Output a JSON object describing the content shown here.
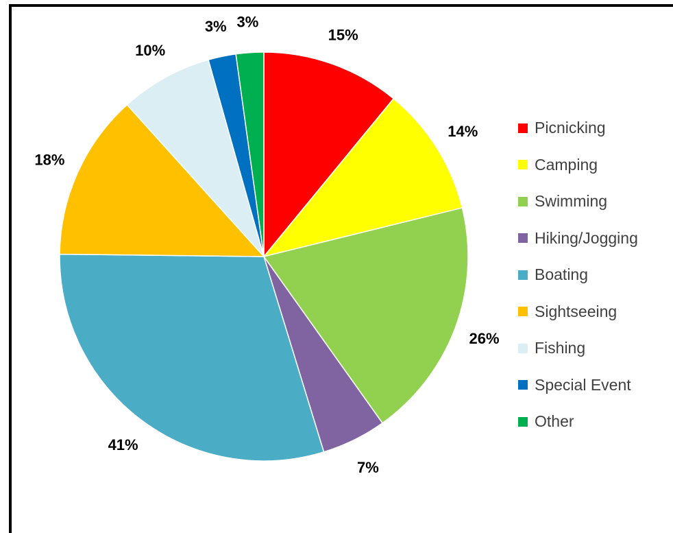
{
  "chart_data": {
    "type": "pie",
    "title": "",
    "legend_position": "right",
    "slices": [
      {
        "name": "Picnicking",
        "value": 15,
        "label": "15%",
        "color": "#FF0000"
      },
      {
        "name": "Camping",
        "value": 14,
        "label": "14%",
        "color": "#FFFF00"
      },
      {
        "name": "Swimming",
        "value": 26,
        "label": "26%",
        "color": "#92D050"
      },
      {
        "name": "Hiking/Jogging",
        "value": 7,
        "label": "7%",
        "color": "#8064A2"
      },
      {
        "name": "Boating",
        "value": 41,
        "label": "41%",
        "color": "#4BACC6"
      },
      {
        "name": "Sightseeing",
        "value": 18,
        "label": "18%",
        "color": "#FFC000"
      },
      {
        "name": "Fishing",
        "value": 10,
        "label": "10%",
        "color": "#DAEEF3"
      },
      {
        "name": "Special Event",
        "value": 3,
        "label": "3%",
        "color": "#0070C0"
      },
      {
        "name": "Other",
        "value": 3,
        "label": "3%",
        "color": "#00B050"
      }
    ]
  }
}
